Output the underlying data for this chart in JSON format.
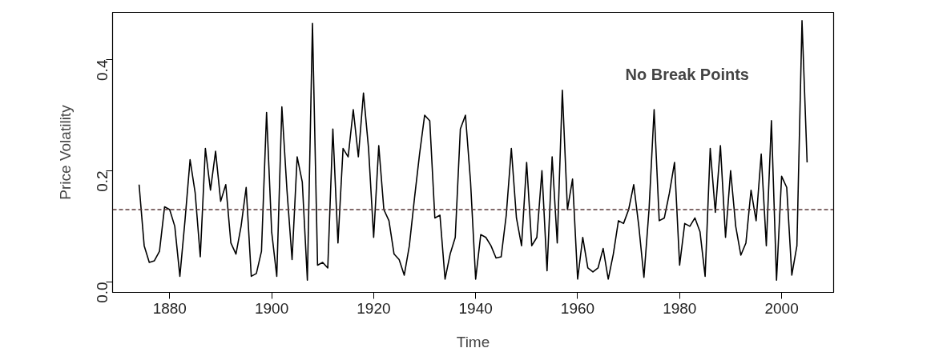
{
  "chart_data": {
    "type": "line",
    "xlabel": "Time",
    "ylabel": "Price Volatility",
    "annotations": [
      "No Break Points"
    ],
    "x": [
      1874,
      1875,
      1876,
      1877,
      1878,
      1879,
      1880,
      1881,
      1882,
      1883,
      1884,
      1885,
      1886,
      1887,
      1888,
      1889,
      1890,
      1891,
      1892,
      1893,
      1894,
      1895,
      1896,
      1897,
      1898,
      1899,
      1900,
      1901,
      1902,
      1903,
      1904,
      1905,
      1906,
      1907,
      1908,
      1909,
      1910,
      1911,
      1912,
      1913,
      1914,
      1915,
      1916,
      1917,
      1918,
      1919,
      1920,
      1921,
      1922,
      1923,
      1924,
      1925,
      1926,
      1927,
      1928,
      1929,
      1930,
      1931,
      1932,
      1933,
      1934,
      1935,
      1936,
      1937,
      1938,
      1939,
      1940,
      1941,
      1942,
      1943,
      1944,
      1945,
      1946,
      1947,
      1948,
      1949,
      1950,
      1951,
      1952,
      1953,
      1954,
      1955,
      1956,
      1957,
      1958,
      1959,
      1960,
      1961,
      1962,
      1963,
      1964,
      1965,
      1966,
      1967,
      1968,
      1969,
      1970,
      1971,
      1972,
      1973,
      1974,
      1975,
      1976,
      1977,
      1978,
      1979,
      1980,
      1981,
      1982,
      1983,
      1984,
      1985,
      1986,
      1987,
      1988,
      1989,
      1990,
      1991,
      1992,
      1993,
      1994,
      1995,
      1996,
      1997,
      1998,
      1999,
      2000,
      2001,
      2002,
      2003,
      2004,
      2005
    ],
    "series": [
      {
        "color": "#000000",
        "values": [
          0.175,
          0.065,
          0.035,
          0.038,
          0.055,
          0.135,
          0.13,
          0.1,
          0.01,
          0.11,
          0.22,
          0.16,
          0.045,
          0.24,
          0.165,
          0.235,
          0.145,
          0.175,
          0.07,
          0.05,
          0.1,
          0.17,
          0.01,
          0.015,
          0.055,
          0.305,
          0.09,
          0.01,
          0.315,
          0.165,
          0.04,
          0.225,
          0.18,
          0.003,
          0.465,
          0.03,
          0.035,
          0.025,
          0.275,
          0.07,
          0.24,
          0.225,
          0.31,
          0.225,
          0.34,
          0.24,
          0.08,
          0.245,
          0.13,
          0.11,
          0.05,
          0.04,
          0.012,
          0.065,
          0.15,
          0.23,
          0.3,
          0.29,
          0.115,
          0.12,
          0.005,
          0.05,
          0.08,
          0.275,
          0.3,
          0.18,
          0.005,
          0.085,
          0.08,
          0.065,
          0.043,
          0.045,
          0.12,
          0.24,
          0.115,
          0.065,
          0.215,
          0.065,
          0.08,
          0.2,
          0.02,
          0.225,
          0.07,
          0.345,
          0.13,
          0.185,
          0.005,
          0.08,
          0.025,
          0.018,
          0.025,
          0.06,
          0.005,
          0.05,
          0.11,
          0.105,
          0.13,
          0.175,
          0.1,
          0.008,
          0.13,
          0.31,
          0.11,
          0.115,
          0.16,
          0.215,
          0.03,
          0.105,
          0.1,
          0.115,
          0.09,
          0.01,
          0.24,
          0.125,
          0.245,
          0.08,
          0.2,
          0.1,
          0.048,
          0.07,
          0.165,
          0.11,
          0.23,
          0.065,
          0.29,
          0.003,
          0.19,
          0.17,
          0.012,
          0.065,
          0.47,
          0.215
        ]
      }
    ],
    "ref_lines": [
      {
        "axis": "y",
        "value": 0.13,
        "color": "#5a3a3a",
        "line_style": "dashed"
      }
    ],
    "xlim": [
      1868.8,
      2010.2
    ],
    "ylim": [
      -0.019,
      0.485
    ],
    "xticks": [
      1880,
      1900,
      1920,
      1940,
      1960,
      1980,
      2000
    ],
    "yticks": [
      {
        "value": 0,
        "label": "0.0"
      },
      {
        "value": 0.2,
        "label": "0.2"
      },
      {
        "value": 0.4,
        "label": "0.4"
      }
    ],
    "grid": false
  }
}
